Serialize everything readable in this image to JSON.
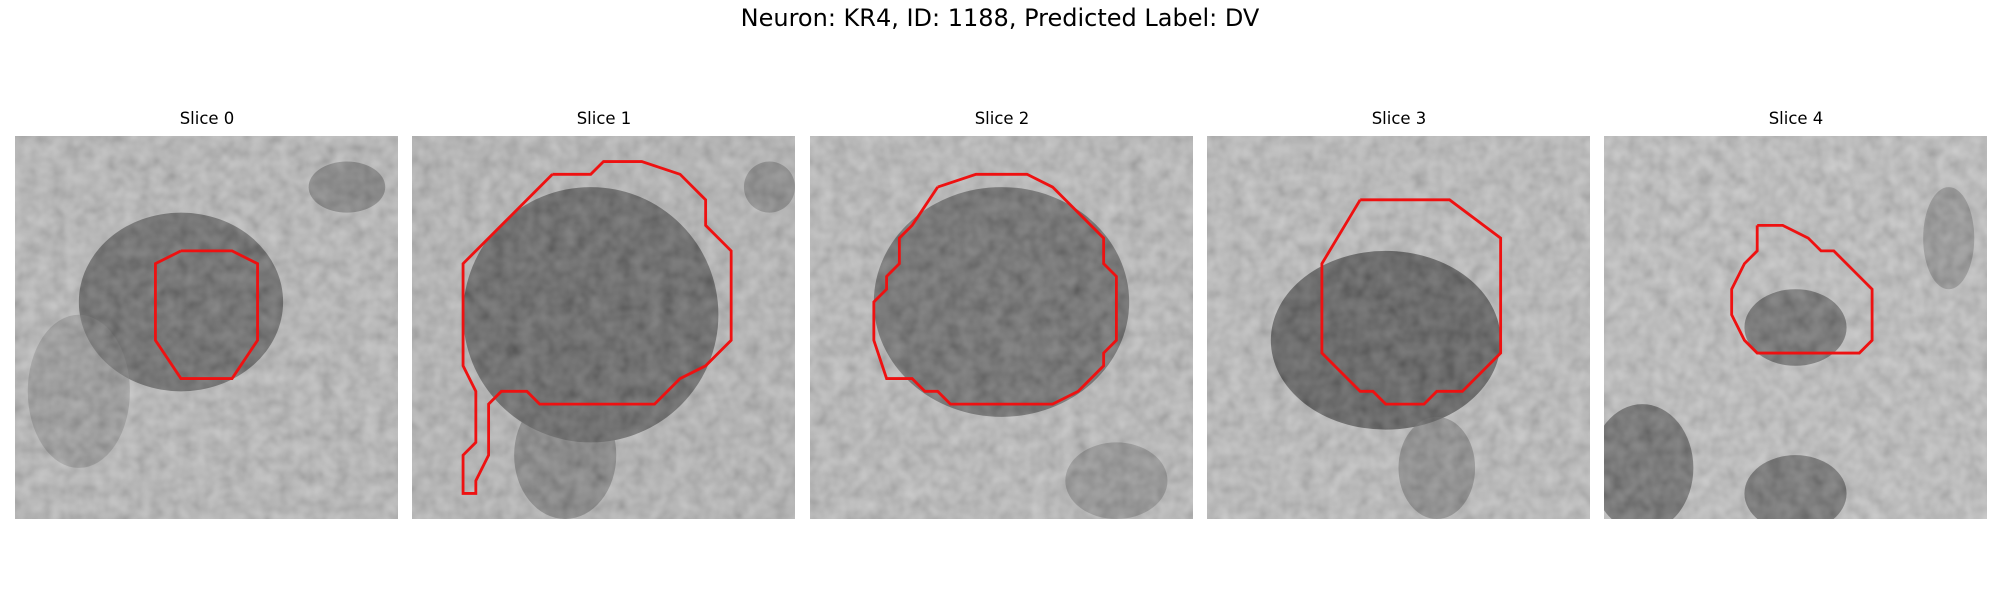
{
  "figure": {
    "title": "Neuron: KR4, ID: 1188, Predicted Label: DV"
  },
  "panels": [
    {
      "title": "Slice 0"
    },
    {
      "title": "Slice 1"
    },
    {
      "title": "Slice 2"
    },
    {
      "title": "Slice 3"
    },
    {
      "title": "Slice 4"
    }
  ],
  "colors": {
    "contour": "#ee1111",
    "background": "#ffffff"
  }
}
